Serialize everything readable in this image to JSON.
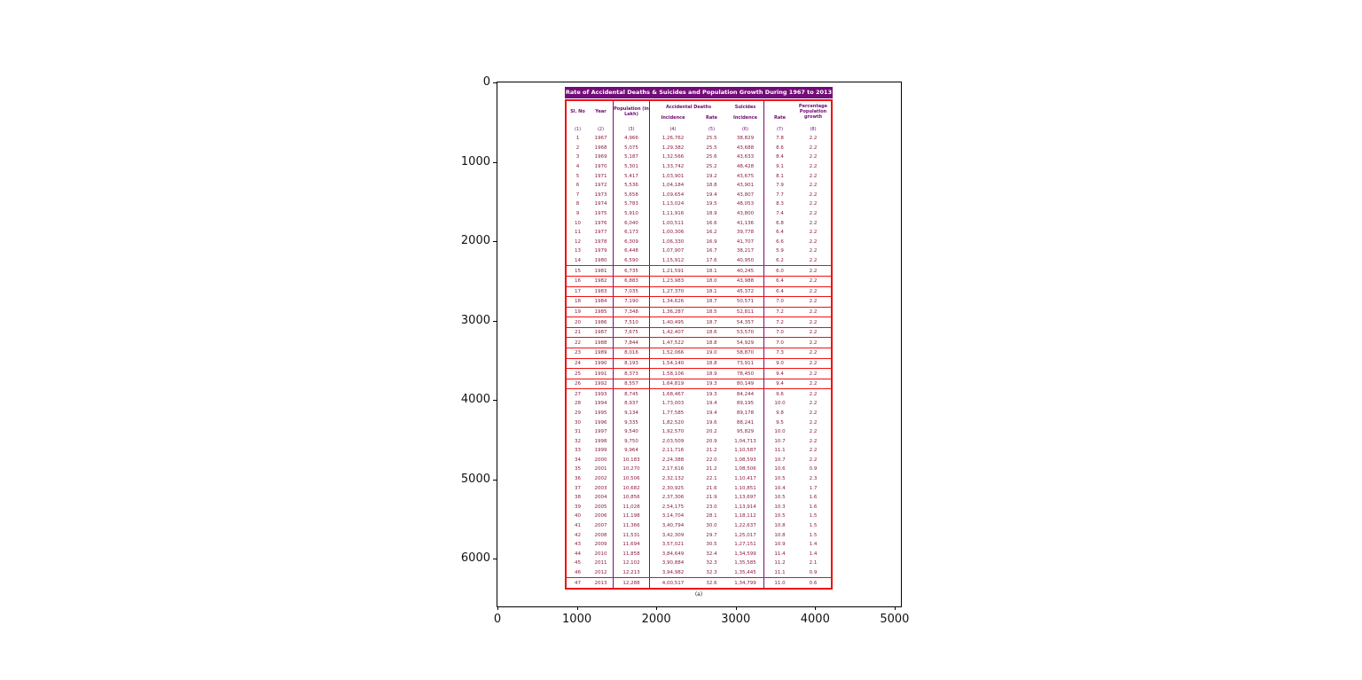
{
  "figure": {
    "x_ticks": [
      "0",
      "1000",
      "2000",
      "3000",
      "4000",
      "5000"
    ],
    "y_ticks": [
      "0",
      "1000",
      "2000",
      "3000",
      "4000",
      "5000",
      "6000"
    ],
    "tick_spacing_px": 89.58
  },
  "table_header": {
    "sl_no": "Sl. No",
    "year": "Year",
    "population": "Population (in Lakh)",
    "accidental_deaths": "Accidental Deaths",
    "suicides": "Suicides",
    "incidence": "Incidence",
    "rate": "Rate",
    "growth": "Percentage Population growth"
  },
  "colors": {
    "title_bar": "#730c78",
    "outer_border": "#ee1111",
    "grid_lines": "#7a0a7a",
    "header_text": "#6d0a6d",
    "data_text": "#8c1c3c"
  },
  "chart_data": {
    "type": "table",
    "title": "Rate of Accidental Deaths & Suicides and Population Growth During 1967 to 2013",
    "caption": "(a)",
    "columns": [
      "Sl. No",
      "Year",
      "Population (in Lakh)",
      "Accidental Deaths - Incidence",
      "Accidental Deaths - Rate",
      "Suicides - Incidence",
      "Suicides - Rate",
      "Percentage Population growth"
    ],
    "column_indices": [
      "(1)",
      "(2)",
      "(3)",
      "(4)",
      "(5)",
      "(6)",
      "(7)",
      "(8)"
    ],
    "red_boxed_rows": [
      15,
      26
    ],
    "rows": [
      [
        "1",
        "1967",
        "4,966",
        "1,26,762",
        "25.5",
        "38,829",
        "7.8",
        "2.2"
      ],
      [
        "2",
        "1968",
        "5,075",
        "1,29,382",
        "25.5",
        "43,688",
        "8.6",
        "2.2"
      ],
      [
        "3",
        "1969",
        "5,187",
        "1,32,566",
        "25.6",
        "43,633",
        "8.4",
        "2.2"
      ],
      [
        "4",
        "1970",
        "5,301",
        "1,33,742",
        "25.2",
        "48,428",
        "9.1",
        "2.2"
      ],
      [
        "5",
        "1971",
        "5,417",
        "1,03,901",
        "19.2",
        "43,675",
        "8.1",
        "2.2"
      ],
      [
        "6",
        "1972",
        "5,536",
        "1,04,184",
        "18.8",
        "43,901",
        "7.9",
        "2.2"
      ],
      [
        "7",
        "1973",
        "5,658",
        "1,09,654",
        "19.4",
        "43,807",
        "7.7",
        "2.2"
      ],
      [
        "8",
        "1974",
        "5,783",
        "1,13,024",
        "19.5",
        "48,053",
        "8.3",
        "2.2"
      ],
      [
        "9",
        "1975",
        "5,910",
        "1,11,916",
        "18.9",
        "43,800",
        "7.4",
        "2.2"
      ],
      [
        "10",
        "1976",
        "6,040",
        "1,00,511",
        "16.6",
        "41,136",
        "6.8",
        "2.2"
      ],
      [
        "11",
        "1977",
        "6,173",
        "1,00,306",
        "16.2",
        "39,778",
        "6.4",
        "2.2"
      ],
      [
        "12",
        "1978",
        "6,309",
        "1,06,330",
        "16.9",
        "41,707",
        "6.6",
        "2.2"
      ],
      [
        "13",
        "1979",
        "6,448",
        "1,07,907",
        "16.7",
        "38,217",
        "5.9",
        "2.2"
      ],
      [
        "14",
        "1980",
        "6,590",
        "1,15,912",
        "17.6",
        "40,950",
        "6.2",
        "2.2"
      ],
      [
        "15",
        "1981",
        "6,735",
        "1,21,591",
        "18.1",
        "40,245",
        "6.0",
        "2.2"
      ],
      [
        "16",
        "1982",
        "6,883",
        "1,23,983",
        "18.0",
        "43,988",
        "6.4",
        "2.2"
      ],
      [
        "17",
        "1983",
        "7,035",
        "1,27,370",
        "18.1",
        "45,372",
        "6.4",
        "2.2"
      ],
      [
        "18",
        "1984",
        "7,190",
        "1,34,626",
        "18.7",
        "50,571",
        "7.0",
        "2.2"
      ],
      [
        "19",
        "1985",
        "7,348",
        "1,36,287",
        "18.5",
        "52,811",
        "7.2",
        "2.2"
      ],
      [
        "20",
        "1986",
        "7,510",
        "1,40,495",
        "18.7",
        "54,357",
        "7.2",
        "2.2"
      ],
      [
        "21",
        "1987",
        "7,675",
        "1,42,407",
        "18.6",
        "53,570",
        "7.0",
        "2.2"
      ],
      [
        "22",
        "1988",
        "7,844",
        "1,47,522",
        "18.8",
        "54,929",
        "7.0",
        "2.2"
      ],
      [
        "23",
        "1989",
        "8,016",
        "1,52,066",
        "19.0",
        "58,870",
        "7.3",
        "2.2"
      ],
      [
        "24",
        "1990",
        "8,193",
        "1,54,140",
        "18.8",
        "73,911",
        "9.0",
        "2.2"
      ],
      [
        "25",
        "1991",
        "8,373",
        "1,58,106",
        "18.9",
        "78,450",
        "9.4",
        "2.2"
      ],
      [
        "26",
        "1992",
        "8,557",
        "1,64,819",
        "19.3",
        "80,149",
        "9.4",
        "2.2"
      ],
      [
        "27",
        "1993",
        "8,745",
        "1,68,467",
        "19.3",
        "84,244",
        "9.6",
        "2.2"
      ],
      [
        "28",
        "1994",
        "8,937",
        "1,73,003",
        "19.4",
        "89,195",
        "10.0",
        "2.2"
      ],
      [
        "29",
        "1995",
        "9,134",
        "1,77,585",
        "19.4",
        "89,178",
        "9.8",
        "2.2"
      ],
      [
        "30",
        "1996",
        "9,335",
        "1,82,520",
        "19.6",
        "88,241",
        "9.5",
        "2.2"
      ],
      [
        "31",
        "1997",
        "9,540",
        "1,92,570",
        "20.2",
        "95,829",
        "10.0",
        "2.2"
      ],
      [
        "32",
        "1998",
        "9,750",
        "2,03,509",
        "20.9",
        "1,04,713",
        "10.7",
        "2.2"
      ],
      [
        "33",
        "1999",
        "9,964",
        "2,11,716",
        "21.2",
        "1,10,587",
        "11.1",
        "2.2"
      ],
      [
        "34",
        "2000",
        "10,183",
        "2,24,388",
        "22.0",
        "1,08,593",
        "10.7",
        "2.2"
      ],
      [
        "35",
        "2001",
        "10,270",
        "2,17,616",
        "21.2",
        "1,08,506",
        "10.6",
        "0.9"
      ],
      [
        "36",
        "2002",
        "10,506",
        "2,32,132",
        "22.1",
        "1,10,417",
        "10.5",
        "2.3"
      ],
      [
        "37",
        "2003",
        "10,682",
        "2,30,925",
        "21.6",
        "1,10,851",
        "10.4",
        "1.7"
      ],
      [
        "38",
        "2004",
        "10,856",
        "2,37,306",
        "21.9",
        "1,13,697",
        "10.5",
        "1.6"
      ],
      [
        "39",
        "2005",
        "11,028",
        "2,54,175",
        "23.0",
        "1,13,914",
        "10.3",
        "1.6"
      ],
      [
        "40",
        "2006",
        "11,198",
        "3,14,704",
        "28.1",
        "1,18,112",
        "10.5",
        "1.5"
      ],
      [
        "41",
        "2007",
        "11,366",
        "3,40,794",
        "30.0",
        "1,22,637",
        "10.8",
        "1.5"
      ],
      [
        "42",
        "2008",
        "11,531",
        "3,42,309",
        "29.7",
        "1,25,017",
        "10.8",
        "1.5"
      ],
      [
        "43",
        "2009",
        "11,694",
        "3,57,021",
        "30.5",
        "1,27,151",
        "10.9",
        "1.4"
      ],
      [
        "44",
        "2010",
        "11,858",
        "3,84,649",
        "32.4",
        "1,34,599",
        "11.4",
        "1.4"
      ],
      [
        "45",
        "2011",
        "12,102",
        "3,90,884",
        "32.3",
        "1,35,585",
        "11.2",
        "2.1"
      ],
      [
        "46",
        "2012",
        "12,213",
        "3,94,982",
        "32.3",
        "1,35,445",
        "11.1",
        "0.9"
      ],
      [
        "47",
        "2013",
        "12,288",
        "4,00,517",
        "32.6",
        "1,34,799",
        "11.0",
        "0.6"
      ]
    ]
  }
}
